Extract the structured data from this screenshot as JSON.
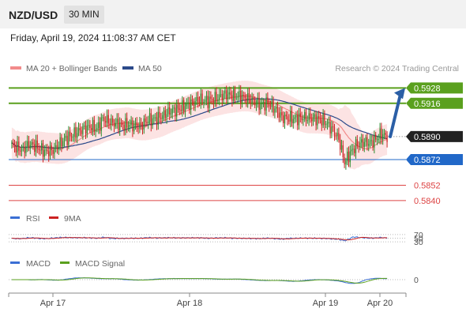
{
  "header": {
    "pair": "NZD/USD",
    "timeframe": "30 MIN",
    "datetime": "Friday, April 19, 2024 11:08:37 AM CET"
  },
  "legend": {
    "ma20": "MA 20 + Bollinger Bands",
    "ma50": "MA 50",
    "credit": "Research © 2024 Trading Central",
    "rsi": "RSI",
    "rsi_ma": "9MA",
    "macd": "MACD",
    "macd_signal": "MACD Signal"
  },
  "colors": {
    "bull": "#2e8b2e",
    "bear": "#cc2222",
    "ma20": "#f28b8b",
    "ma50": "#2c4a8a",
    "bollinger_fill": "#fce3e3",
    "resistance": "#5aa01e",
    "support": "#2168c8",
    "minor_support": "#dd4444",
    "current": "#222222",
    "arrow": "#2b5fa6"
  },
  "chart_data": [
    {
      "type": "candlestick",
      "x_ticks": [
        "Apr 17",
        "Apr 18",
        "Apr 19",
        "Apr 20"
      ],
      "ylim": [
        0.5835,
        0.5935
      ],
      "grid": false,
      "overlays": [
        "MA 20",
        "Bollinger Bands",
        "MA 50"
      ],
      "levels": [
        {
          "value": 0.5928,
          "label": "0.5928",
          "kind": "resistance",
          "style": "tag"
        },
        {
          "value": 0.5916,
          "label": "0.5916",
          "kind": "resistance",
          "style": "tag"
        },
        {
          "value": 0.589,
          "label": "0.5890",
          "kind": "current",
          "style": "tag"
        },
        {
          "value": 0.5872,
          "label": "0.5872",
          "kind": "support",
          "style": "tag"
        },
        {
          "value": 0.5852,
          "label": "0.5852",
          "kind": "minor_support",
          "style": "text"
        },
        {
          "value": 0.584,
          "label": "0.5840",
          "kind": "minor_support",
          "style": "text"
        }
      ],
      "forecast_arrow": {
        "from": 0.589,
        "to": 0.5928,
        "direction": "up"
      },
      "close_path": [
        [
          0,
          0.5883
        ],
        [
          4,
          0.5881
        ],
        [
          8,
          0.588
        ],
        [
          12,
          0.5884
        ],
        [
          16,
          0.5883
        ],
        [
          19,
          0.5881
        ],
        [
          24,
          0.5878
        ],
        [
          30,
          0.588
        ],
        [
          36,
          0.5887
        ],
        [
          42,
          0.5891
        ],
        [
          50,
          0.5896
        ],
        [
          56,
          0.5898
        ],
        [
          60,
          0.5896
        ],
        [
          64,
          0.5904
        ],
        [
          70,
          0.5901
        ],
        [
          78,
          0.5899
        ],
        [
          84,
          0.5899
        ],
        [
          90,
          0.5898
        ],
        [
          96,
          0.5903
        ],
        [
          102,
          0.5904
        ],
        [
          110,
          0.5909
        ],
        [
          118,
          0.5912
        ],
        [
          126,
          0.5916
        ],
        [
          132,
          0.5919
        ],
        [
          138,
          0.5918
        ],
        [
          144,
          0.592
        ],
        [
          150,
          0.5923
        ],
        [
          156,
          0.5922
        ],
        [
          162,
          0.5921
        ],
        [
          168,
          0.5919
        ],
        [
          174,
          0.5915
        ],
        [
          180,
          0.5916
        ],
        [
          185,
          0.5912
        ],
        [
          190,
          0.5905
        ],
        [
          198,
          0.5904
        ],
        [
          206,
          0.5905
        ],
        [
          214,
          0.5904
        ],
        [
          220,
          0.5902
        ],
        [
          226,
          0.5895
        ],
        [
          230,
          0.5888
        ],
        [
          234,
          0.587
        ],
        [
          238,
          0.5877
        ],
        [
          242,
          0.5883
        ],
        [
          248,
          0.5886
        ],
        [
          252,
          0.5885
        ],
        [
          256,
          0.5888
        ],
        [
          260,
          0.5892
        ],
        [
          264,
          0.589
        ]
      ]
    },
    {
      "type": "line",
      "name": "RSI",
      "ticks": [
        70,
        50,
        30
      ],
      "ylim": [
        0,
        100
      ],
      "series": [
        "RSI",
        "9MA"
      ]
    },
    {
      "type": "line",
      "name": "MACD",
      "ticks": [
        0
      ],
      "series": [
        "MACD",
        "MACD Signal"
      ]
    }
  ]
}
